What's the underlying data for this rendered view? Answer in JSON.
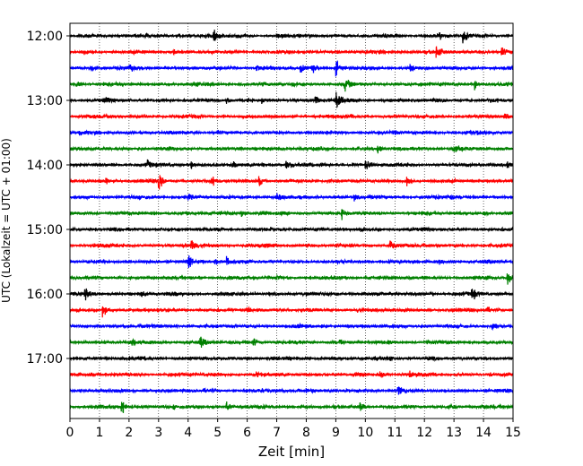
{
  "chart_data": {
    "type": "line",
    "title": "",
    "xlabel": "Zeit  [min]",
    "ylabel": "UTC (Lokalzeit = UTC + 01:00)",
    "xlim": [
      0,
      15
    ],
    "x_ticks": [
      "0",
      "1",
      "2",
      "3",
      "4",
      "5",
      "6",
      "7",
      "8",
      "9",
      "10",
      "11",
      "12",
      "13",
      "14",
      "15"
    ],
    "y_tick_labels": [
      "12:00",
      "13:00",
      "14:00",
      "15:00",
      "16:00",
      "17:00"
    ],
    "grid": "vertical dotted at each minute",
    "traces_start": "12:00",
    "trace_interval_min": 15,
    "trace_count": 24,
    "colors_cycle": [
      "#000000",
      "#ff0000",
      "#0000ff",
      "#008000"
    ],
    "trace_events": [
      [
        [
          4.85,
          1.0
        ],
        [
          13.3,
          0.9
        ],
        [
          4.6,
          0.35
        ],
        [
          7.0,
          0.25
        ],
        [
          12.5,
          0.35
        ]
      ],
      [
        [
          12.4,
          1.0
        ],
        [
          14.6,
          0.7
        ],
        [
          0.4,
          0.3
        ],
        [
          3.5,
          0.25
        ],
        [
          9.0,
          0.2
        ]
      ],
      [
        [
          9.0,
          1.0
        ],
        [
          0.7,
          0.6
        ],
        [
          7.8,
          0.6
        ],
        [
          8.2,
          0.5
        ],
        [
          6.3,
          0.5
        ],
        [
          11.5,
          0.4
        ],
        [
          2.0,
          0.25
        ]
      ],
      [
        [
          9.3,
          0.8
        ],
        [
          13.7,
          0.7
        ],
        [
          0.2,
          0.35
        ],
        [
          4.2,
          0.25
        ],
        [
          7.5,
          0.3
        ]
      ],
      [
        [
          8.3,
          0.9
        ],
        [
          9.0,
          1.0
        ],
        [
          1.2,
          0.3
        ],
        [
          5.3,
          0.35
        ],
        [
          6.5,
          0.3
        ]
      ],
      [
        [
          14.7,
          0.45
        ],
        [
          2.5,
          0.2
        ],
        [
          9.5,
          0.2
        ]
      ],
      [
        [
          0.3,
          0.35
        ],
        [
          5.0,
          0.2
        ],
        [
          11.0,
          0.2
        ],
        [
          13.8,
          0.2
        ]
      ],
      [
        [
          10.4,
          0.5
        ],
        [
          13.0,
          0.6
        ],
        [
          2.3,
          0.2
        ],
        [
          7.0,
          0.2
        ]
      ],
      [
        [
          4.1,
          0.6
        ],
        [
          5.5,
          0.5
        ],
        [
          7.3,
          0.9
        ],
        [
          10.0,
          0.6
        ],
        [
          2.6,
          0.45
        ],
        [
          14.8,
          0.35
        ]
      ],
      [
        [
          3.0,
          1.0
        ],
        [
          4.8,
          0.55
        ],
        [
          6.4,
          0.7
        ],
        [
          11.4,
          0.6
        ],
        [
          1.2,
          0.25
        ],
        [
          8.7,
          0.25
        ]
      ],
      [
        [
          4.0,
          0.4
        ],
        [
          7.0,
          0.35
        ],
        [
          9.6,
          0.35
        ],
        [
          12.9,
          0.3
        ]
      ],
      [
        [
          9.2,
          0.6
        ],
        [
          5.8,
          0.45
        ],
        [
          6.4,
          0.35
        ],
        [
          14.0,
          0.3
        ],
        [
          2.8,
          0.2
        ]
      ],
      [
        [
          3.0,
          0.15
        ],
        [
          8.5,
          0.15
        ],
        [
          12.0,
          0.15
        ]
      ],
      [
        [
          4.1,
          0.9
        ],
        [
          10.8,
          0.9
        ],
        [
          0.8,
          0.2
        ],
        [
          6.7,
          0.2
        ]
      ],
      [
        [
          4.0,
          0.65
        ],
        [
          4.9,
          0.5
        ],
        [
          5.3,
          0.55
        ],
        [
          12.5,
          0.2
        ]
      ],
      [
        [
          14.8,
          0.85
        ],
        [
          7.0,
          0.2
        ],
        [
          10.0,
          0.2
        ]
      ],
      [
        [
          0.5,
          0.8
        ],
        [
          13.6,
          0.65
        ],
        [
          2.4,
          0.3
        ],
        [
          8.0,
          0.25
        ],
        [
          12.2,
          0.25
        ]
      ],
      [
        [
          1.1,
          0.7
        ],
        [
          14.1,
          0.45
        ],
        [
          6.0,
          0.25
        ],
        [
          9.7,
          0.2
        ]
      ],
      [
        [
          14.3,
          0.5
        ],
        [
          3.6,
          0.2
        ],
        [
          8.5,
          0.2
        ],
        [
          11.7,
          0.2
        ]
      ],
      [
        [
          4.4,
          0.8
        ],
        [
          6.2,
          0.5
        ],
        [
          2.1,
          0.2
        ],
        [
          9.1,
          0.25
        ],
        [
          12.8,
          0.2
        ]
      ],
      [
        [
          6.0,
          0.25
        ],
        [
          10.8,
          0.25
        ],
        [
          2.5,
          0.2
        ]
      ],
      [
        [
          10.5,
          0.75
        ],
        [
          11.5,
          0.3
        ],
        [
          6.3,
          0.25
        ],
        [
          0.7,
          0.2
        ],
        [
          14.2,
          0.2
        ]
      ],
      [
        [
          11.1,
          0.7
        ],
        [
          4.5,
          0.15
        ],
        [
          8.0,
          0.15
        ]
      ],
      [
        [
          1.75,
          0.9
        ],
        [
          5.3,
          0.6
        ],
        [
          9.8,
          0.55
        ],
        [
          12.9,
          0.3
        ],
        [
          3.5,
          0.2
        ]
      ]
    ]
  }
}
